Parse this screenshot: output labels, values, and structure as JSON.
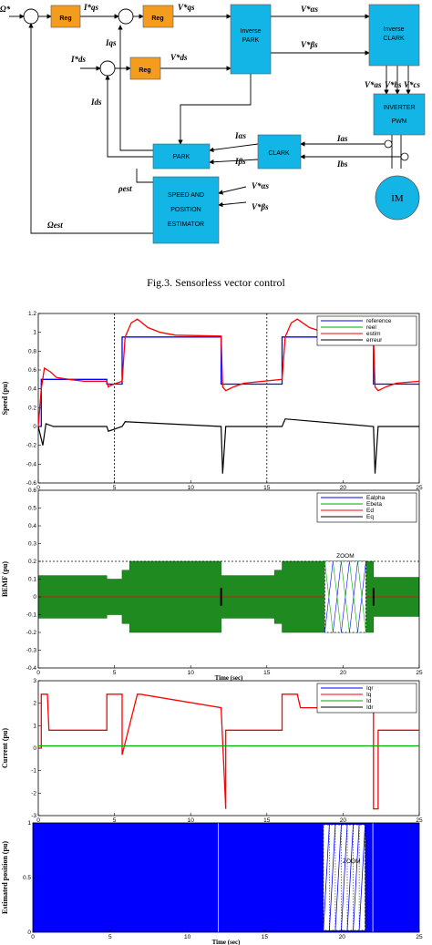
{
  "block_diagram": {
    "blocks": {
      "reg1": "Reg",
      "reg2": "Reg",
      "reg3": "Reg",
      "inverse_park": [
        "Inverse",
        "PARK"
      ],
      "inverse_clark": [
        "Inverse",
        "CLARK"
      ],
      "inverter": [
        "INVERTER",
        "PWM"
      ],
      "park": "PARK",
      "clark": "CLARK",
      "estimator": [
        "SPEED AND",
        "POSITION",
        "ESTIMATOR"
      ],
      "motor": "IM"
    },
    "signals": {
      "omega_ref": "Ω*",
      "iqs_ref": "I*qs",
      "vqs_ref": "V*qs",
      "iqs": "Iqs",
      "ids_ref": "I*ds",
      "vds_ref": "V*ds",
      "ids": "Ids",
      "valpha_ref": "V*αs",
      "vbeta_ref": "V*βs",
      "vas": "V*as",
      "vbs": "V*bs",
      "vcs": "V*cs",
      "ialpha": "Iαs",
      "ibeta": "Iβs",
      "ias": "Ias",
      "ibs": "Ibs",
      "rho": "ρest",
      "est_valpha": "V*αs",
      "est_vbeta": "V*βs",
      "omega_est": "Ωest"
    }
  },
  "caption": "Fig.3. Sensorless vector control",
  "chart_data": [
    {
      "type": "line",
      "ylabel": "Speed  (pu)",
      "xlim": [
        0,
        25
      ],
      "ylim": [
        -0.6,
        1.2
      ],
      "xticks": [
        "0",
        "5",
        "10",
        "15",
        "20",
        "25"
      ],
      "yticks": [
        "-0.6",
        "-0.4",
        "-0.2",
        "0",
        "0.2",
        "0.4",
        "0.6",
        "0.8",
        "1",
        "1.2"
      ],
      "legend": [
        "reference",
        "reel",
        "estim",
        "erreur"
      ],
      "legend_colors": [
        "#0000ff",
        "#00aa00",
        "#ff0000",
        "#000000"
      ],
      "legend_position": "top-right",
      "vlines_dotted": [
        5,
        15
      ],
      "series": [
        {
          "name": "reference",
          "x": [
            0,
            0.2,
            0.2,
            4.5,
            4.5,
            5.5,
            5.5,
            12,
            12,
            16,
            16,
            22,
            22,
            25
          ],
          "y": [
            0,
            0,
            0.5,
            0.5,
            0.45,
            0.45,
            0.95,
            0.95,
            0.45,
            0.45,
            0.95,
            0.95,
            0.45,
            0.45
          ]
        },
        {
          "name": "estim",
          "x": [
            0,
            0.2,
            0.4,
            0.8,
            1.2,
            2,
            3,
            4.5,
            4.6,
            4.8,
            5.5,
            5.7,
            6.1,
            6.5,
            7.2,
            8,
            9,
            12,
            12.1,
            12.3,
            12.8,
            13.5,
            16,
            16.2,
            16.6,
            17,
            17.8,
            18.8,
            20,
            22,
            22.1,
            22.3,
            22.8,
            23.5,
            25
          ],
          "y": [
            0,
            0.4,
            0.62,
            0.58,
            0.52,
            0.5,
            0.48,
            0.48,
            0.42,
            0.44,
            0.48,
            0.95,
            1.1,
            1.14,
            1.05,
            1.0,
            0.97,
            0.96,
            0.42,
            0.38,
            0.42,
            0.46,
            0.5,
            0.95,
            1.1,
            1.14,
            1.05,
            1.0,
            0.97,
            0.96,
            0.42,
            0.38,
            0.42,
            0.46,
            0.48
          ]
        },
        {
          "name": "erreur",
          "x": [
            0,
            0.3,
            0.5,
            1,
            4.5,
            4.6,
            5.5,
            5.7,
            12,
            12.1,
            12.3,
            16,
            16.2,
            22,
            22.1,
            22.3,
            25
          ],
          "y": [
            0,
            -0.2,
            0.03,
            0.0,
            0.0,
            -0.05,
            0.0,
            0.05,
            0.0,
            -0.5,
            0.0,
            0.0,
            0.08,
            0.0,
            -0.5,
            0.0,
            0.0
          ]
        }
      ]
    },
    {
      "type": "line",
      "ylabel": "BEMF  (pu)",
      "xlabel": "Time (sec)",
      "xlim": [
        0,
        25
      ],
      "ylim": [
        -0.4,
        0.6
      ],
      "xticks": [
        "0",
        "5",
        "10",
        "15",
        "20",
        "25"
      ],
      "yticks": [
        "-0.4",
        "-0.3",
        "-0.2",
        "-0.1",
        "0",
        "0.1",
        "0.2",
        "0.3",
        "0.4",
        "0.5",
        "0.6"
      ],
      "legend": [
        "Ealpha",
        "Ebeta",
        "Ed",
        "Eq"
      ],
      "legend_colors": [
        "#0000ff",
        "#00aa00",
        "#ff0000",
        "#000000"
      ],
      "legend_position": "top-right",
      "annotation": "ZOOM",
      "hline_dotted": 0.2,
      "envelope": {
        "x": [
          0,
          4.5,
          4.5,
          5.5,
          5.5,
          6,
          6,
          12,
          12,
          15.5,
          15.5,
          16,
          16,
          22,
          22,
          25
        ],
        "amp": [
          0.12,
          0.12,
          0.1,
          0.1,
          0.15,
          0.15,
          0.2,
          0.2,
          0.12,
          0.12,
          0.15,
          0.15,
          0.2,
          0.2,
          0.11,
          0.11
        ]
      }
    },
    {
      "type": "line",
      "ylabel": "Current   (pu)",
      "xlim": [
        0,
        25
      ],
      "ylim": [
        -3,
        3
      ],
      "xticks": [
        "0",
        "5",
        "10",
        "15",
        "20",
        "25"
      ],
      "yticks": [
        "-3",
        "-2",
        "-1",
        "0",
        "1",
        "2",
        "3"
      ],
      "legend": [
        "Iqr",
        "Iq",
        "Id",
        "Idr"
      ],
      "legend_colors": [
        "#0000ff",
        "#ff0000",
        "#00aa00",
        "#000000"
      ],
      "legend_position": "top-right",
      "series": [
        {
          "name": "Iq",
          "x": [
            0,
            0.2,
            0.2,
            0.6,
            0.7,
            4.5,
            4.5,
            5.5,
            5.5,
            6.5,
            6.7,
            12,
            12,
            12.3,
            12.3,
            16,
            16,
            17,
            17.2,
            22,
            22,
            22.3,
            22.3,
            25
          ],
          "y": [
            0,
            0,
            2.4,
            2.4,
            0.8,
            0.8,
            2.4,
            2.4,
            -0.3,
            2.4,
            2.4,
            1.8,
            1.8,
            -2.7,
            0.8,
            0.8,
            2.4,
            2.4,
            1.8,
            1.8,
            -2.7,
            -2.7,
            0.8,
            0.8
          ]
        },
        {
          "name": "Id",
          "x": [
            0,
            25
          ],
          "y": [
            0.1,
            0.1
          ]
        }
      ]
    },
    {
      "type": "line",
      "ylabel": "Estimated  position  (pu)",
      "xlabel": "Time (sec)",
      "xlim": [
        0,
        25
      ],
      "ylim": [
        0,
        1
      ],
      "xticks": [
        "0",
        "5",
        "10",
        "15",
        "20",
        "25"
      ],
      "yticks": [
        "0",
        "0.5",
        "1"
      ],
      "annotation": "ZOOM"
    }
  ]
}
